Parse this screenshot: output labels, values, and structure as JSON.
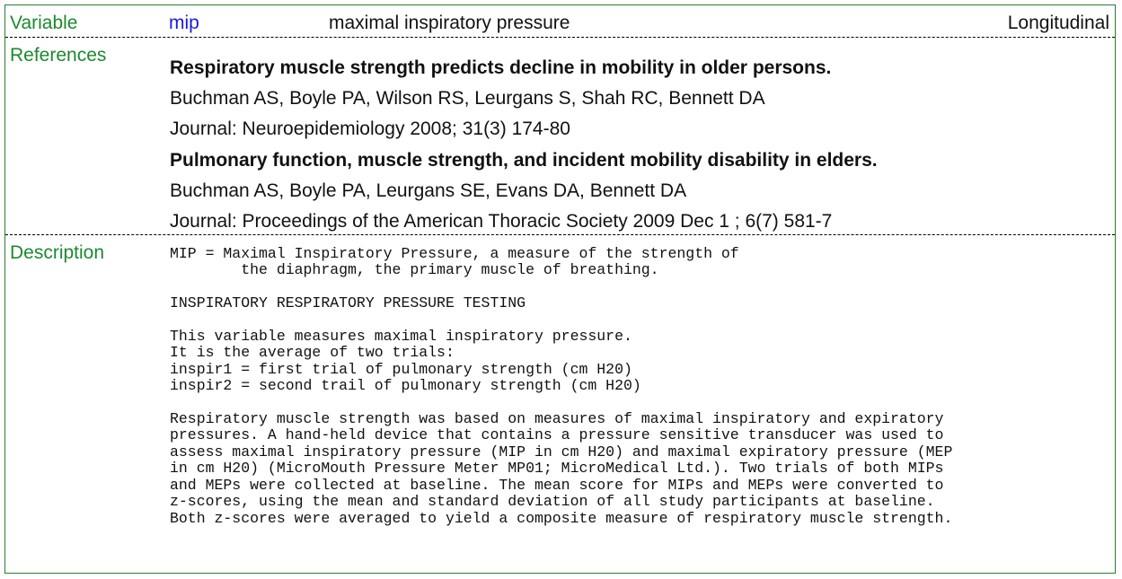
{
  "variable": {
    "label": "Variable",
    "code": "mip",
    "long_name": "maximal inspiratory pressure",
    "category": "Longitudinal",
    "code_color": "#1a1adb"
  },
  "references": {
    "label": "References",
    "items": [
      {
        "title": "Respiratory muscle strength predicts decline in mobility in older persons.",
        "authors": "Buchman AS, Boyle PA, Wilson RS, Leurgans S, Shah RC, Bennett DA",
        "journal": "Journal: Neuroepidemiology 2008; 31(3) 174-80"
      },
      {
        "title": "Pulmonary function, muscle strength, and incident mobility disability in elders.",
        "authors": "Buchman AS, Boyle PA, Leurgans SE, Evans DA, Bennett DA",
        "journal": "Journal: Proceedings of the American Thoracic Society 2009 Dec 1 ; 6(7) 581-7"
      }
    ]
  },
  "description": {
    "label": "Description",
    "text": "MIP = Maximal Inspiratory Pressure, a measure of the strength of\n        the diaphragm, the primary muscle of breathing.\n\nINSPIRATORY RESPIRATORY PRESSURE TESTING\n\nThis variable measures maximal inspiratory pressure.\nIt is the average of two trials:\ninspir1 = first trial of pulmonary strength (cm H20)\ninspir2 = second trail of pulmonary strength (cm H20)\n\nRespiratory muscle strength was based on measures of maximal inspiratory and expiratory\npressures. A hand-held device that contains a pressure sensitive transducer was used to\nassess maximal inspiratory pressure (MIP in cm H20) and maximal expiratory pressure (MEP\nin cm H20) (MicroMouth Pressure Meter MP01; MicroMedical Ltd.). Two trials of both MIPs\nand MEPs were collected at baseline. The mean score for MIPs and MEPs were converted to\nz-scores, using the mean and standard deviation of all study participants at baseline.\nBoth z-scores were averaged to yield a composite measure of respiratory muscle strength."
  }
}
